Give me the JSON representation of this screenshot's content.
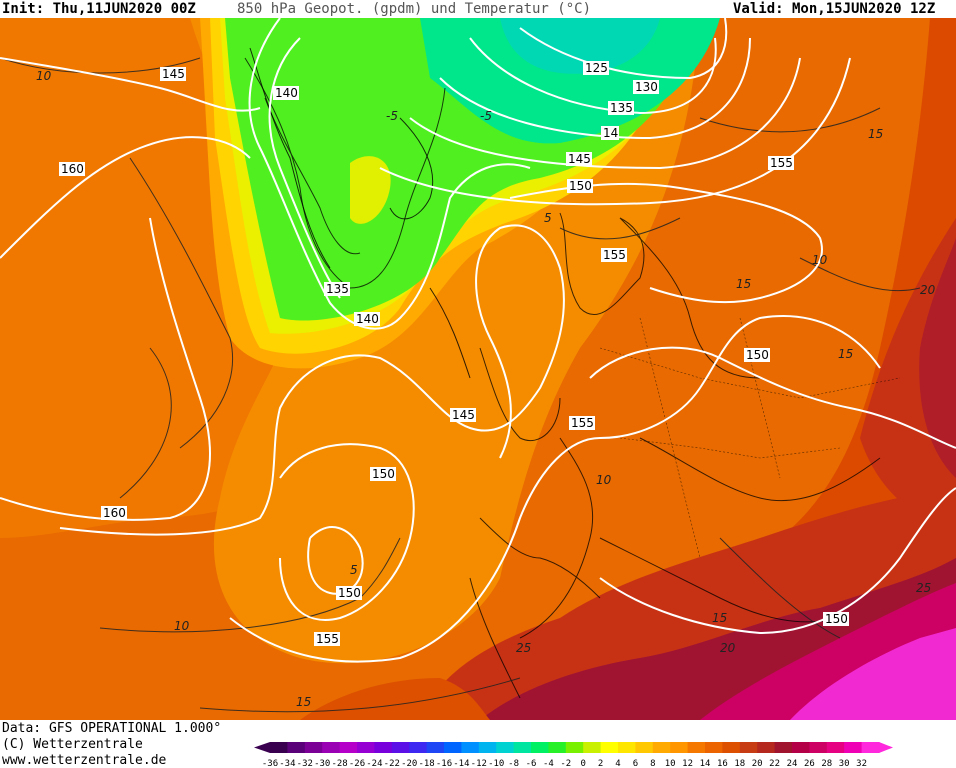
{
  "header": {
    "init": "Init: Thu,11JUN2020 00Z",
    "title": "850 hPa Geopot. (gpdm) und Temperatur (°C)",
    "valid": "Valid: Mon,15JUN2020 12Z"
  },
  "footer": {
    "data_line": "Data: GFS OPERATIONAL 1.000°",
    "copyright": "(C) Wetterzentrale",
    "website": "www.wetterzentrale.de"
  },
  "geopotential_labels": [
    "145",
    "140",
    "135",
    "140",
    "160",
    "160",
    "155",
    "150",
    "150",
    "145",
    "155",
    "150",
    "155",
    "150",
    "125",
    "130",
    "135",
    "14",
    "145",
    "150",
    "155",
    "155",
    "150"
  ],
  "temperature_labels": [
    "10",
    "5",
    "-5",
    "-5",
    "5",
    "10",
    "15",
    "15",
    "20",
    "20",
    "25",
    "25",
    "15",
    "15",
    "10",
    "15",
    "10"
  ],
  "color_scale": {
    "ticks": [
      "-36",
      "-34",
      "-32",
      "-30",
      "-28",
      "-26",
      "-24",
      "-22",
      "-20",
      "-18",
      "-16",
      "-14",
      "-12",
      "-10",
      "-8",
      "-6",
      "-4",
      "-2",
      "0",
      "2",
      "4",
      "6",
      "8",
      "10",
      "12",
      "14",
      "16",
      "18",
      "20",
      "22",
      "24",
      "26",
      "28",
      "30",
      "32"
    ],
    "colors": [
      "#3a0050",
      "#5a0078",
      "#7a0096",
      "#9a00b4",
      "#b400c8",
      "#9600d2",
      "#7800dc",
      "#5a10e6",
      "#3c28f0",
      "#1e46f5",
      "#0064ff",
      "#0090ff",
      "#00b4f0",
      "#00d2d2",
      "#00e6a0",
      "#00f064",
      "#28f028",
      "#78f000",
      "#c8f000",
      "#ffff00",
      "#ffe600",
      "#ffc800",
      "#ffaa00",
      "#ff9600",
      "#f57800",
      "#eb6400",
      "#dc5000",
      "#c83c14",
      "#b4281e",
      "#a0142d",
      "#b40046",
      "#cd0064",
      "#e60082",
      "#f000b4",
      "#ff28dc"
    ]
  }
}
